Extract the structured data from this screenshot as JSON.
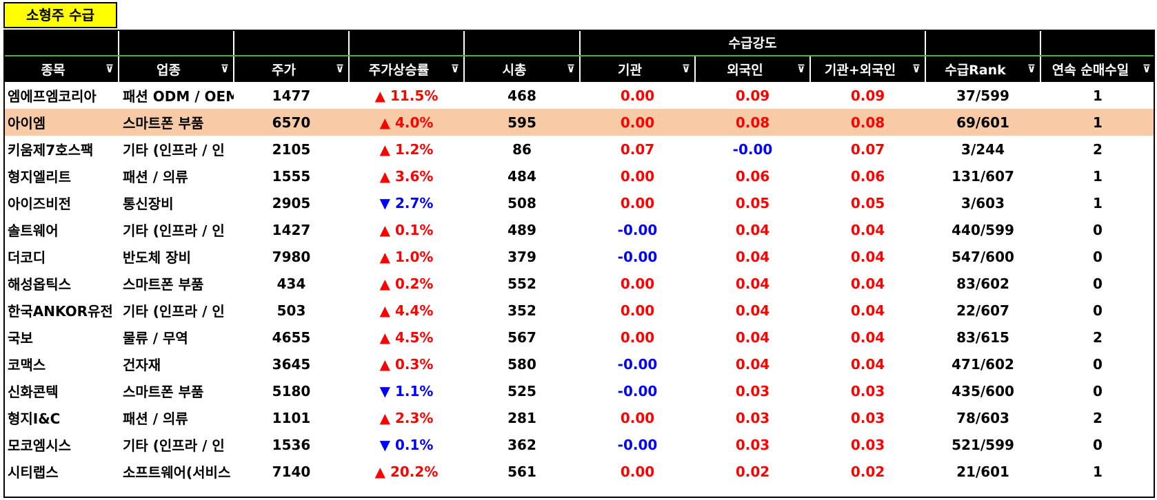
{
  "sheet_title": "소형주 수급",
  "group_header": "수급강도",
  "columns": [
    "종목",
    "업종",
    "주가",
    "주가상승률",
    "시총",
    "기관",
    "외국인",
    "기관+외국인",
    "수급Rank",
    "연속 순매수일"
  ],
  "filter_glyph": "⊽",
  "colors": {
    "up": "#ff0000",
    "down": "#0000ff",
    "highlight_row": "#f8cba6",
    "tab": "#ffff00"
  },
  "rows": [
    {
      "name": "엠에프엠코리아",
      "sector": "패션 ODM / OEM",
      "price": "1477",
      "dir": "up",
      "chg": "▲ 11.5%",
      "mcap": "468",
      "inst": "0.00",
      "frgn": "0.09",
      "both": "0.09",
      "rank": "37/599",
      "days": "1"
    },
    {
      "name": "아이엠",
      "sector": "스마트폰 부품",
      "price": "6570",
      "dir": "up",
      "chg": "▲ 4.0%",
      "mcap": "595",
      "inst": "0.00",
      "frgn": "0.08",
      "both": "0.08",
      "rank": "69/601",
      "days": "1"
    },
    {
      "name": "키움제7호스팩",
      "sector": "기타 (인프라 / 인",
      "price": "2105",
      "dir": "up",
      "chg": "▲ 1.2%",
      "mcap": "86",
      "inst": "0.07",
      "frgn": "-0.00",
      "both": "0.07",
      "rank": "3/244",
      "days": "2"
    },
    {
      "name": "형지엘리트",
      "sector": "패션 / 의류",
      "price": "1555",
      "dir": "up",
      "chg": "▲ 3.6%",
      "mcap": "484",
      "inst": "0.00",
      "frgn": "0.06",
      "both": "0.06",
      "rank": "131/607",
      "days": "1"
    },
    {
      "name": "아이즈비전",
      "sector": "통신장비",
      "price": "2905",
      "dir": "down",
      "chg": "▼ 2.7%",
      "mcap": "508",
      "inst": "0.00",
      "frgn": "0.05",
      "both": "0.05",
      "rank": "3/603",
      "days": "1"
    },
    {
      "name": "솔트웨어",
      "sector": "기타 (인프라 / 인",
      "price": "1427",
      "dir": "up",
      "chg": "▲ 0.1%",
      "mcap": "489",
      "inst": "-0.00",
      "frgn": "0.04",
      "both": "0.04",
      "rank": "440/599",
      "days": "0"
    },
    {
      "name": "더코디",
      "sector": "반도체 장비",
      "price": "7980",
      "dir": "up",
      "chg": "▲ 1.0%",
      "mcap": "379",
      "inst": "-0.00",
      "frgn": "0.04",
      "both": "0.04",
      "rank": "547/600",
      "days": "0"
    },
    {
      "name": "해성옵틱스",
      "sector": "스마트폰 부품",
      "price": "434",
      "dir": "up",
      "chg": "▲ 0.2%",
      "mcap": "552",
      "inst": "0.00",
      "frgn": "0.04",
      "both": "0.04",
      "rank": "83/602",
      "days": "0"
    },
    {
      "name": "한국ANKOR유전",
      "sector": "기타 (인프라 / 인",
      "price": "503",
      "dir": "up",
      "chg": "▲ 4.4%",
      "mcap": "352",
      "inst": "0.00",
      "frgn": "0.04",
      "both": "0.04",
      "rank": "22/607",
      "days": "0"
    },
    {
      "name": "국보",
      "sector": "물류 / 무역",
      "price": "4655",
      "dir": "up",
      "chg": "▲ 4.5%",
      "mcap": "567",
      "inst": "0.00",
      "frgn": "0.04",
      "both": "0.04",
      "rank": "83/615",
      "days": "2"
    },
    {
      "name": "코맥스",
      "sector": "건자재",
      "price": "3645",
      "dir": "up",
      "chg": "▲ 0.3%",
      "mcap": "580",
      "inst": "-0.00",
      "frgn": "0.04",
      "both": "0.04",
      "rank": "471/602",
      "days": "0"
    },
    {
      "name": "신화콘텍",
      "sector": "스마트폰 부품",
      "price": "5180",
      "dir": "down",
      "chg": "▼ 1.1%",
      "mcap": "525",
      "inst": "-0.00",
      "frgn": "0.03",
      "both": "0.03",
      "rank": "435/600",
      "days": "0"
    },
    {
      "name": "형지I&C",
      "sector": "패션 / 의류",
      "price": "1101",
      "dir": "up",
      "chg": "▲ 2.3%",
      "mcap": "281",
      "inst": "0.00",
      "frgn": "0.03",
      "both": "0.03",
      "rank": "78/603",
      "days": "2"
    },
    {
      "name": "모코엠시스",
      "sector": "기타 (인프라 / 인",
      "price": "1536",
      "dir": "down",
      "chg": "▼ 0.1%",
      "mcap": "362",
      "inst": "-0.00",
      "frgn": "0.03",
      "both": "0.03",
      "rank": "521/599",
      "days": "0"
    },
    {
      "name": "시티랩스",
      "sector": "소프트웨어(서비스",
      "price": "7140",
      "dir": "up",
      "chg": "▲ 20.2%",
      "mcap": "561",
      "inst": "0.00",
      "frgn": "0.02",
      "both": "0.02",
      "rank": "21/601",
      "days": "1"
    }
  ],
  "highlighted_row_index": 1
}
